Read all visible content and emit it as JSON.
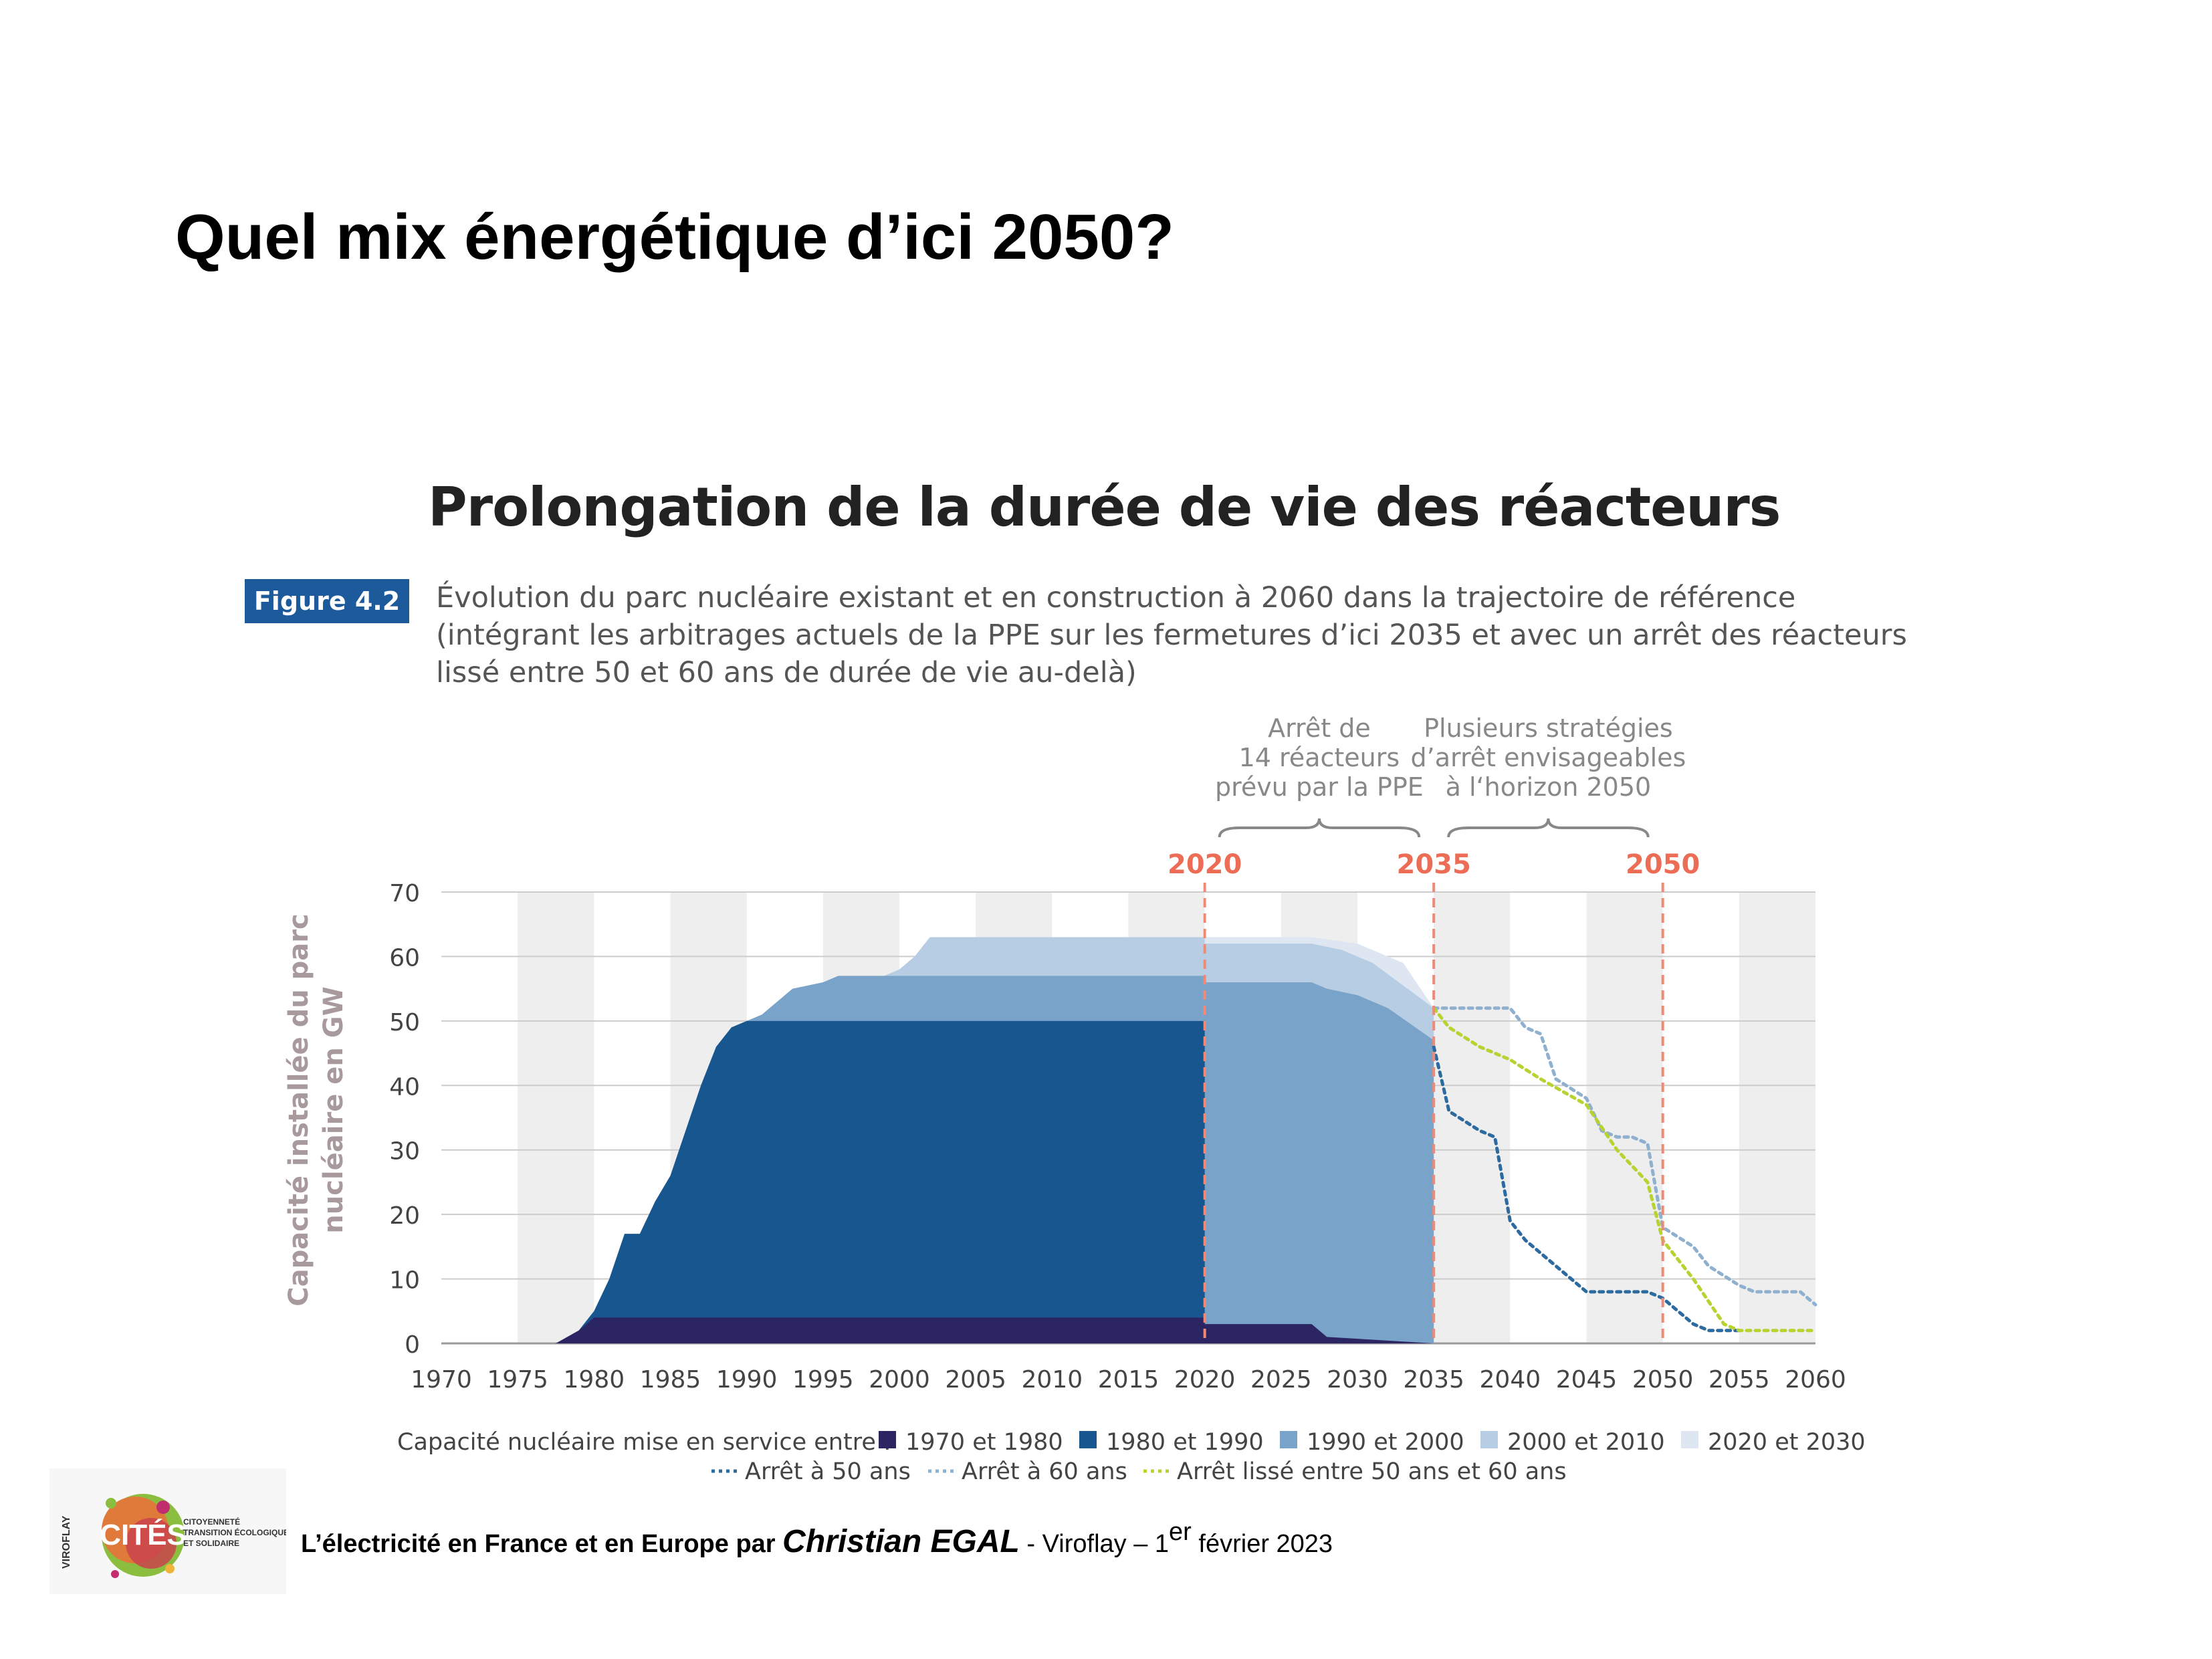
{
  "slide": {
    "title": "Quel mix énergétique d’ici 2050?"
  },
  "figure": {
    "heading": "Prolongation de la durée de vie des réacteurs",
    "badge": "Figure 4.2",
    "caption": [
      "Évolution du parc nucléaire existant et en construction à 2060 dans la trajectoire de référence",
      "(intégrant les arbitrages actuels de la PPE sur les fermetures d’ici 2035 et avec un arrêt des réacteurs",
      "lissé entre 50 et 60 ans de durée de vie au-delà)"
    ]
  },
  "chart_data": {
    "type": "area",
    "ylabel": "Capacité installée du parc nucléaire en GW",
    "ylim": [
      0,
      70
    ],
    "xlim": [
      1970,
      2060
    ],
    "y_ticks": [
      0,
      10,
      20,
      30,
      40,
      50,
      60,
      70
    ],
    "x_ticks": [
      1970,
      1975,
      1980,
      1985,
      1990,
      1995,
      2000,
      2005,
      2010,
      2015,
      2020,
      2025,
      2030,
      2035,
      2040,
      2045,
      2050,
      2055,
      2060
    ],
    "markers": [
      {
        "year": 2020,
        "label": "2020"
      },
      {
        "year": 2035,
        "label": "2035"
      },
      {
        "year": 2050,
        "label": "2050"
      }
    ],
    "annotations": [
      {
        "lines": [
          "Arrêt de",
          "14 réacteurs",
          "prévu par la PPE"
        ],
        "span": [
          2020,
          2035
        ]
      },
      {
        "lines": [
          "Plusieurs stratégies",
          "d’arrêt envisageables",
          "à l‘horizon 2050"
        ],
        "span": [
          2035,
          2050
        ]
      }
    ],
    "legend_title": "Capacité nucléaire mise en service entre :",
    "stacked_series": [
      {
        "name": "1970 et 1980",
        "color": "#2b2563",
        "points": [
          [
            1970,
            0
          ],
          [
            1977.5,
            0
          ],
          [
            1979,
            2
          ],
          [
            1980,
            4
          ],
          [
            2020,
            4
          ],
          [
            2020,
            3
          ],
          [
            2027,
            3
          ],
          [
            2028,
            1
          ],
          [
            2035,
            0
          ]
        ]
      },
      {
        "name": "1980 et 1990",
        "color": "#17568f",
        "points": [
          [
            1970,
            0
          ],
          [
            1977.5,
            0
          ],
          [
            1979,
            2
          ],
          [
            1980,
            5
          ],
          [
            1981,
            10
          ],
          [
            1982,
            17
          ],
          [
            1983,
            17
          ],
          [
            1984,
            22
          ],
          [
            1985,
            26
          ],
          [
            1986,
            33
          ],
          [
            1987,
            40
          ],
          [
            1988,
            46
          ],
          [
            1989,
            49
          ],
          [
            1990,
            50
          ],
          [
            2020,
            50
          ]
        ]
      },
      {
        "name": "1990 et 2000",
        "color": "#7aa3c9",
        "points": [
          [
            1989,
            49
          ],
          [
            1990,
            50
          ],
          [
            1991,
            51
          ],
          [
            1992,
            53
          ],
          [
            1993,
            55
          ],
          [
            1995,
            56
          ],
          [
            1996,
            57
          ],
          [
            2020,
            57
          ],
          [
            2020,
            56
          ],
          [
            2027,
            56
          ],
          [
            2028,
            55
          ],
          [
            2030,
            54
          ],
          [
            2032,
            52
          ],
          [
            2035,
            47
          ]
        ]
      },
      {
        "name": "2000 et 2010",
        "color": "#b7cde3",
        "points": [
          [
            1999,
            57
          ],
          [
            2000,
            58
          ],
          [
            2001,
            60
          ],
          [
            2002,
            63
          ],
          [
            2020,
            63
          ],
          [
            2020,
            62
          ],
          [
            2027,
            62
          ],
          [
            2029,
            61
          ],
          [
            2031,
            59
          ],
          [
            2035,
            52
          ]
        ]
      },
      {
        "name": "2020 et 2030",
        "color": "#dde6f1",
        "points": [
          [
            2020,
            63
          ],
          [
            2027,
            63
          ],
          [
            2030,
            62
          ],
          [
            2033,
            59
          ],
          [
            2035,
            52
          ]
        ]
      }
    ],
    "projection_series": [
      {
        "name": "Arrêt à 50 ans",
        "color": "#2d6aa0",
        "points": [
          [
            2035,
            46
          ],
          [
            2036,
            36
          ],
          [
            2038,
            33
          ],
          [
            2039,
            32
          ],
          [
            2040,
            19
          ],
          [
            2041,
            16
          ],
          [
            2042,
            14
          ],
          [
            2043,
            12
          ],
          [
            2045,
            8
          ],
          [
            2049,
            8
          ],
          [
            2050,
            7
          ],
          [
            2051,
            5
          ],
          [
            2052,
            3
          ],
          [
            2053,
            2
          ],
          [
            2055,
            2
          ]
        ]
      },
      {
        "name": "Arrêt à 60 ans",
        "color": "#8fb0cf",
        "points": [
          [
            2035,
            52
          ],
          [
            2040,
            52
          ],
          [
            2041,
            49
          ],
          [
            2042,
            48
          ],
          [
            2043,
            41
          ],
          [
            2045,
            38
          ],
          [
            2046,
            33
          ],
          [
            2047,
            32
          ],
          [
            2048,
            32
          ],
          [
            2049,
            31
          ],
          [
            2050,
            18
          ],
          [
            2052,
            15
          ],
          [
            2053,
            12
          ],
          [
            2055,
            9
          ],
          [
            2056,
            8
          ],
          [
            2059,
            8
          ],
          [
            2060,
            6
          ]
        ]
      },
      {
        "name": "Arrêt lissé entre 50 ans et 60 ans",
        "color": "#b7d332",
        "points": [
          [
            2035,
            52
          ],
          [
            2036,
            49
          ],
          [
            2038,
            46
          ],
          [
            2040,
            44
          ],
          [
            2042,
            41
          ],
          [
            2045,
            37
          ],
          [
            2047,
            30
          ],
          [
            2049,
            25
          ],
          [
            2050,
            16
          ],
          [
            2052,
            10
          ],
          [
            2054,
            3
          ],
          [
            2055,
            2
          ],
          [
            2060,
            2
          ]
        ]
      }
    ]
  },
  "footer": {
    "part1": "L’électricité en France et en Europe par ",
    "author": "Christian EGAL",
    "part2": " - Viroflay – 1",
    "sup": "er",
    "part3": "  février 2023"
  },
  "logo": {
    "main_text": "CITÉS",
    "side_text": "VIROFLAY",
    "tagline": [
      "CITOYENNETÉ",
      "TRANSITION ÉCOLOGIQUE",
      "ET SOLIDAIRE"
    ]
  },
  "colors": {
    "marker_line": "#f08a76",
    "marker_label": "#ec6c55",
    "grid_band": "#eeeeee",
    "axis_text": "#444444",
    "ylabel": "#a89a9c",
    "badge_bg": "#1c5a9b"
  }
}
